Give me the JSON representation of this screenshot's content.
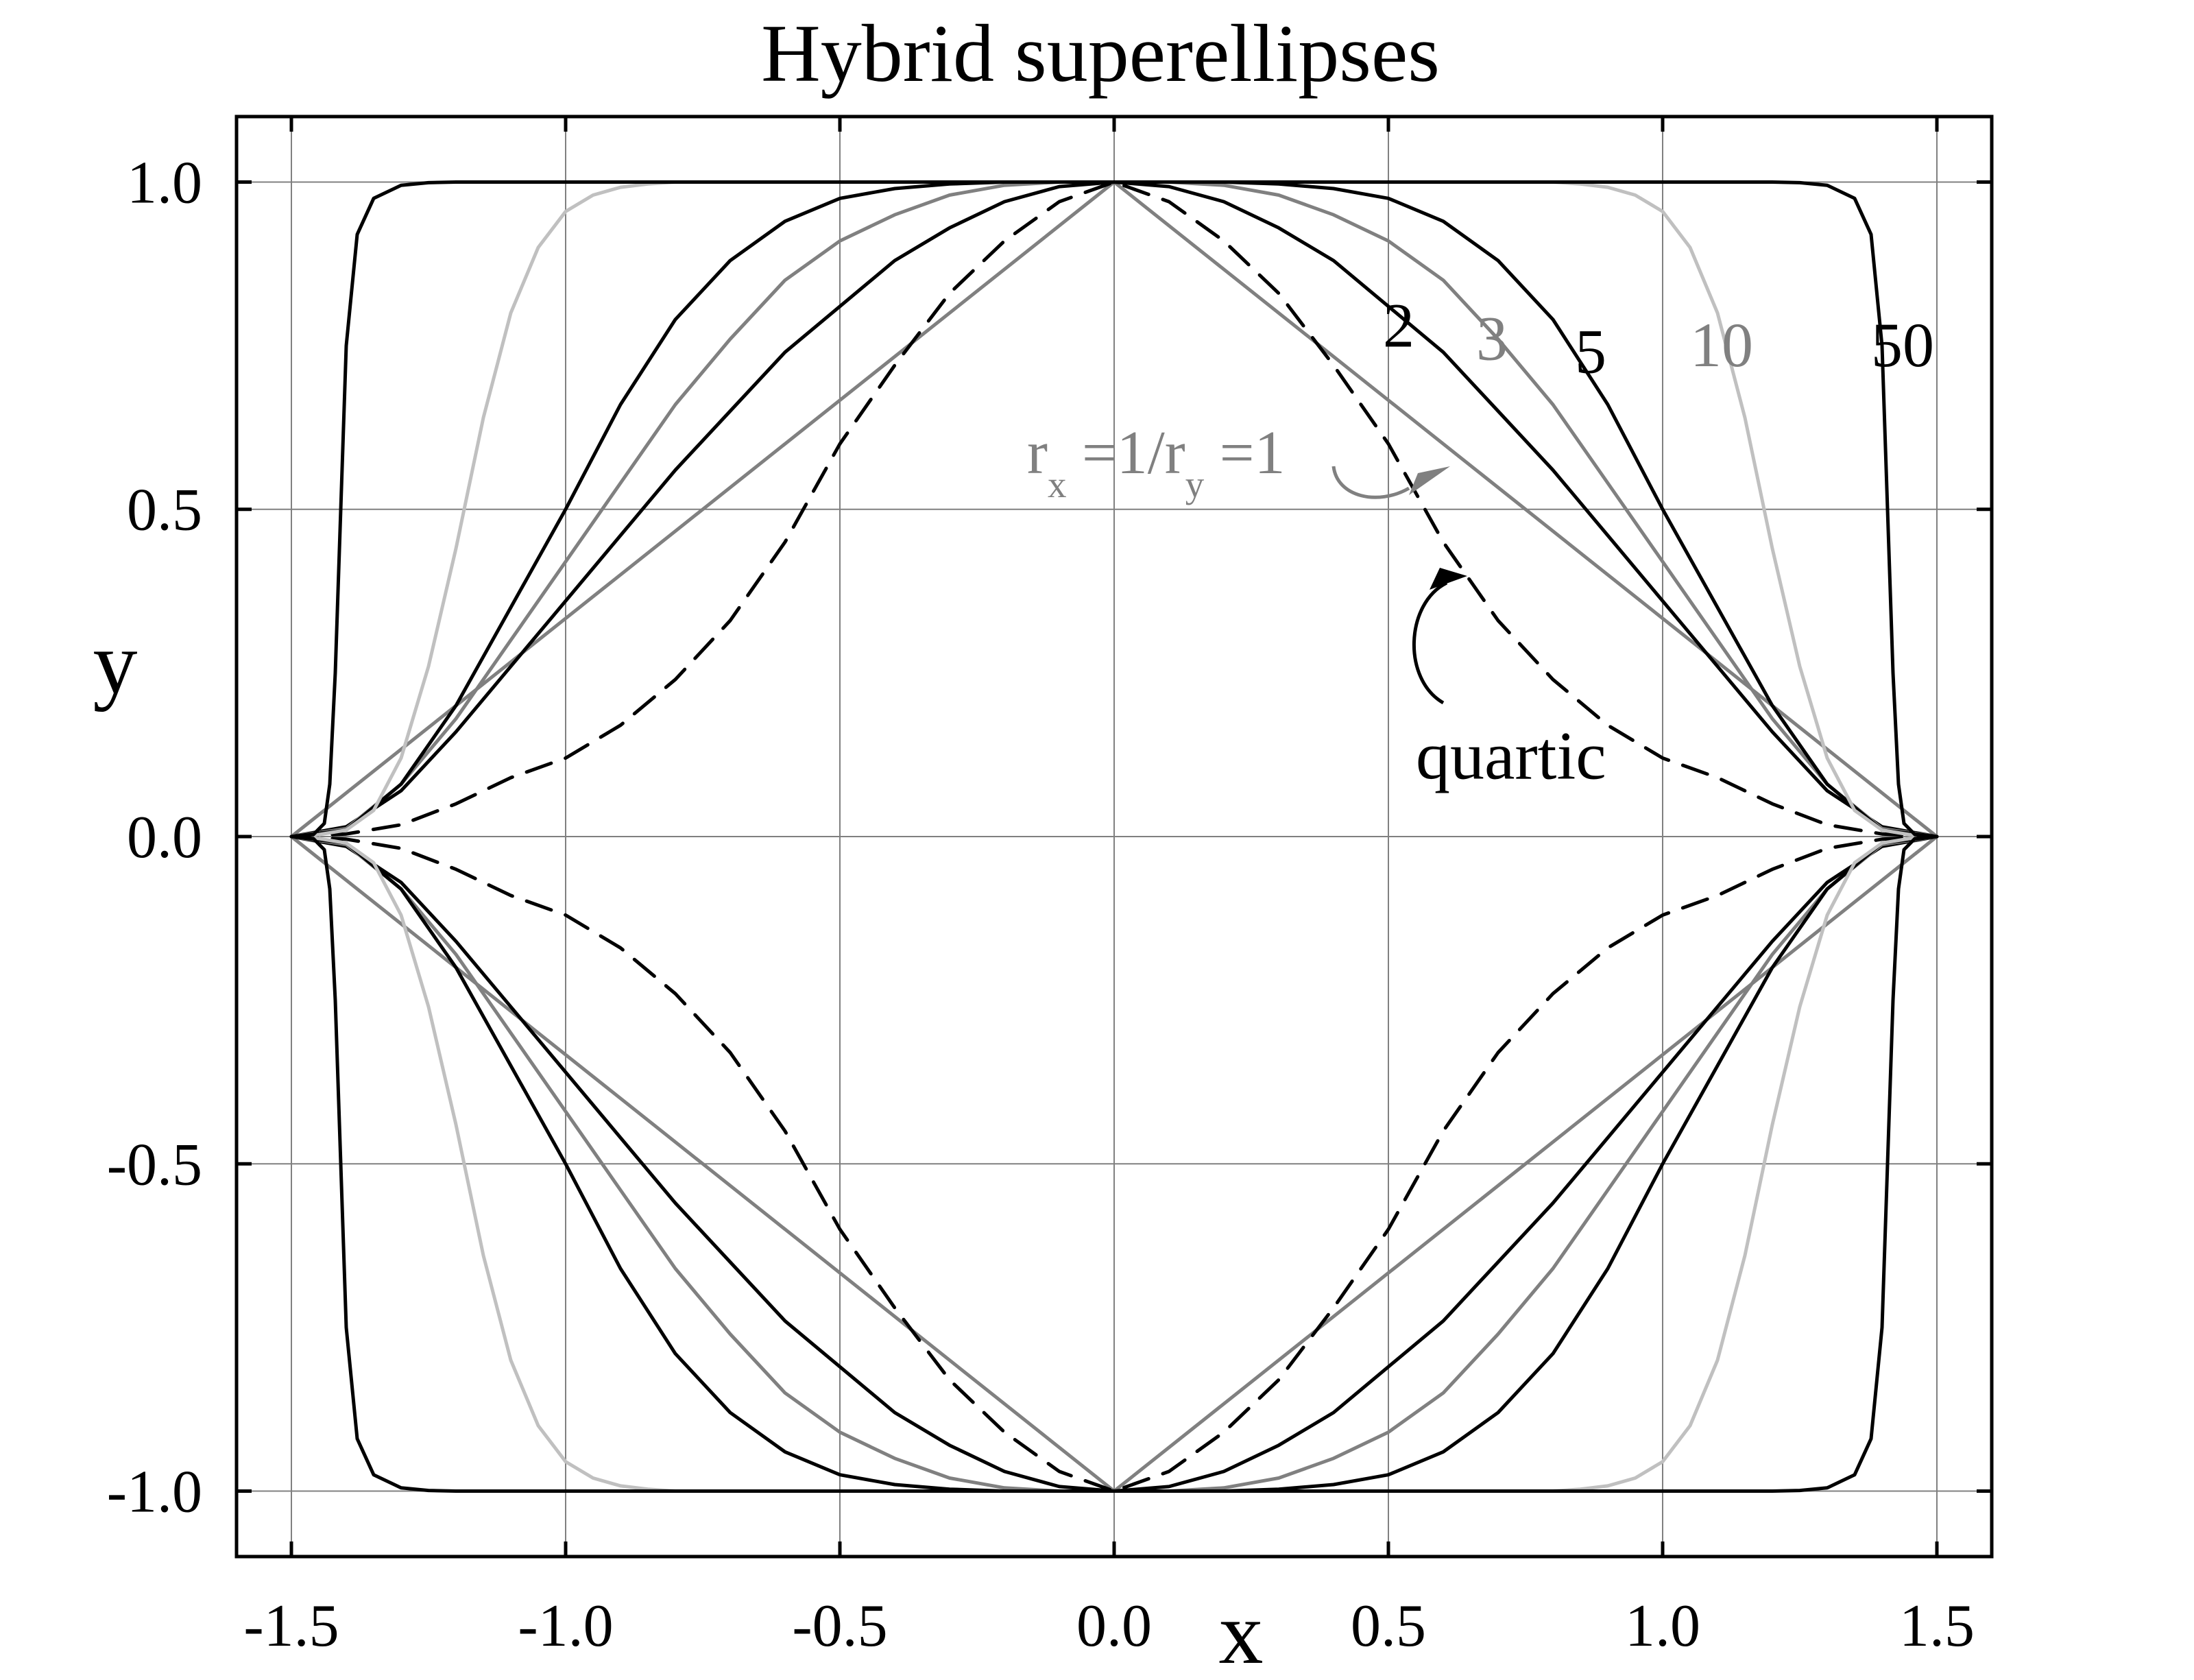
{
  "chart_data": {
    "type": "line",
    "title": "Hybrid superellipses",
    "xlabel": "x",
    "ylabel": "y",
    "xlim": [
      -1.6,
      1.6
    ],
    "ylim": [
      -1.1,
      1.1
    ],
    "grid": true,
    "x_ticks": [
      -1.5,
      -1.0,
      -0.5,
      0.0,
      0.5,
      1.0,
      1.5
    ],
    "x_tick_labels": [
      "-1.5",
      "-1.0",
      "-0.5",
      "0.0",
      "0.5",
      "1.0",
      "1.5"
    ],
    "y_ticks": [
      -1.0,
      -0.5,
      0.0,
      0.5,
      1.0
    ],
    "y_tick_labels": [
      "-1.0",
      "-0.5",
      "0.0",
      "0.5",
      "1.0"
    ],
    "series": [
      {
        "label": "r_x =1/r_y =1",
        "color": "#808080",
        "dash": "solid",
        "x": [
          -1.5,
          0.0,
          1.5
        ],
        "y": [
          0.0,
          1.0,
          0.0
        ]
      },
      {
        "label": "quartic",
        "color": "#000000",
        "dash": "dashed",
        "x": [
          -1.5,
          -1.4,
          -1.3,
          -1.2,
          -1.1,
          -1.0,
          -0.9,
          -0.8,
          -0.7,
          -0.6,
          -0.5,
          -0.4,
          -0.3,
          -0.2,
          -0.1,
          0.0,
          0.1,
          0.2,
          0.3,
          0.4,
          0.5,
          0.6,
          0.7,
          0.8,
          0.9,
          1.0,
          1.1,
          1.2,
          1.3,
          1.4,
          1.5
        ],
        "y": [
          0.0,
          0.004,
          0.018,
          0.05,
          0.09,
          0.12,
          0.17,
          0.24,
          0.33,
          0.45,
          0.6,
          0.72,
          0.83,
          0.91,
          0.97,
          1.0,
          0.97,
          0.91,
          0.83,
          0.72,
          0.6,
          0.45,
          0.33,
          0.24,
          0.17,
          0.12,
          0.09,
          0.05,
          0.018,
          0.004,
          0.0
        ]
      },
      {
        "label": "2",
        "color": "#000000",
        "dash": "solid",
        "x": [
          -1.5,
          -1.4,
          -1.3,
          -1.2,
          -1.1,
          -1.0,
          -0.9,
          -0.8,
          -0.7,
          -0.6,
          -0.5,
          -0.4,
          -0.3,
          -0.2,
          -0.1,
          0.0,
          0.1,
          0.2,
          0.3,
          0.4,
          0.5,
          0.6,
          0.7,
          0.8,
          0.9,
          1.0,
          1.1,
          1.2,
          1.3,
          1.4,
          1.5
        ],
        "y": [
          0.0,
          0.015,
          0.07,
          0.16,
          0.26,
          0.36,
          0.46,
          0.56,
          0.65,
          0.74,
          0.81,
          0.88,
          0.93,
          0.97,
          0.993,
          1.0,
          0.993,
          0.97,
          0.93,
          0.88,
          0.81,
          0.74,
          0.65,
          0.56,
          0.46,
          0.36,
          0.26,
          0.16,
          0.07,
          0.015,
          0.0
        ]
      },
      {
        "label": "3",
        "color": "#808080",
        "dash": "solid",
        "x": [
          -1.5,
          -1.4,
          -1.3,
          -1.2,
          -1.1,
          -1.0,
          -0.9,
          -0.8,
          -0.7,
          -0.6,
          -0.5,
          -0.4,
          -0.3,
          -0.2,
          -0.1,
          0.0,
          0.1,
          0.2,
          0.3,
          0.4,
          0.5,
          0.6,
          0.7,
          0.8,
          0.9,
          1.0,
          1.1,
          1.2,
          1.3,
          1.4,
          1.5
        ],
        "y": [
          0.0,
          0.012,
          0.08,
          0.18,
          0.3,
          0.42,
          0.54,
          0.66,
          0.76,
          0.85,
          0.91,
          0.95,
          0.98,
          0.995,
          1.0,
          1.0,
          1.0,
          0.995,
          0.98,
          0.95,
          0.91,
          0.85,
          0.76,
          0.66,
          0.54,
          0.42,
          0.3,
          0.18,
          0.08,
          0.012,
          0.0
        ]
      },
      {
        "label": "5",
        "color": "#000000",
        "dash": "solid",
        "x": [
          -1.5,
          -1.4,
          -1.3,
          -1.2,
          -1.1,
          -1.0,
          -0.9,
          -0.8,
          -0.7,
          -0.6,
          -0.5,
          -0.4,
          -0.3,
          -0.2,
          -0.1,
          0.0,
          0.1,
          0.2,
          0.3,
          0.4,
          0.5,
          0.6,
          0.7,
          0.8,
          0.9,
          1.0,
          1.1,
          1.2,
          1.3,
          1.4,
          1.5
        ],
        "y": [
          0.0,
          0.01,
          0.08,
          0.2,
          0.35,
          0.5,
          0.66,
          0.79,
          0.88,
          0.94,
          0.975,
          0.99,
          0.997,
          1.0,
          1.0,
          1.0,
          1.0,
          1.0,
          0.997,
          0.99,
          0.975,
          0.94,
          0.88,
          0.79,
          0.66,
          0.5,
          0.35,
          0.2,
          0.08,
          0.01,
          0.0
        ]
      },
      {
        "label": "10",
        "color": "#c0c0c0",
        "dash": "solid",
        "x": [
          -1.5,
          -1.45,
          -1.4,
          -1.35,
          -1.3,
          -1.25,
          -1.2,
          -1.15,
          -1.1,
          -1.05,
          -1.0,
          -0.95,
          -0.9,
          -0.85,
          -0.8,
          -0.75,
          0.0,
          0.75,
          0.8,
          0.85,
          0.9,
          0.95,
          1.0,
          1.05,
          1.1,
          1.15,
          1.2,
          1.25,
          1.3,
          1.35,
          1.4,
          1.45,
          1.5
        ],
        "y": [
          0.0,
          0.003,
          0.01,
          0.04,
          0.12,
          0.26,
          0.44,
          0.64,
          0.8,
          0.9,
          0.955,
          0.98,
          0.992,
          0.997,
          1.0,
          1.0,
          1.0,
          1.0,
          1.0,
          0.997,
          0.992,
          0.98,
          0.955,
          0.9,
          0.8,
          0.64,
          0.44,
          0.26,
          0.12,
          0.04,
          0.01,
          0.003,
          0.0
        ]
      },
      {
        "label": "50",
        "color": "#000000",
        "dash": "solid",
        "x": [
          -1.5,
          -1.46,
          -1.44,
          -1.43,
          -1.42,
          -1.41,
          -1.4,
          -1.38,
          -1.35,
          -1.3,
          -1.25,
          -1.2,
          0.0,
          1.2,
          1.25,
          1.3,
          1.35,
          1.38,
          1.4,
          1.41,
          1.42,
          1.43,
          1.44,
          1.46,
          1.5
        ],
        "y": [
          0.0,
          0.003,
          0.02,
          0.08,
          0.25,
          0.5,
          0.75,
          0.92,
          0.975,
          0.995,
          0.999,
          1.0,
          1.0,
          1.0,
          0.999,
          0.995,
          0.975,
          0.92,
          0.75,
          0.5,
          0.25,
          0.08,
          0.02,
          0.003,
          0.0
        ]
      }
    ],
    "annotations": [
      {
        "text": "2",
        "x": 0.49,
        "y": 0.78,
        "color": "#000000"
      },
      {
        "text": "3",
        "x": 0.66,
        "y": 0.76,
        "color": "#808080"
      },
      {
        "text": "5",
        "x": 0.84,
        "y": 0.74,
        "color": "#000000"
      },
      {
        "text": "10",
        "x": 1.05,
        "y": 0.75,
        "color": "#808080"
      },
      {
        "text": "50",
        "x": 1.38,
        "y": 0.75,
        "color": "#000000"
      },
      {
        "text": "quartic",
        "x": 0.55,
        "y": 0.12,
        "color": "#000000"
      }
    ],
    "label_rx_ry": {
      "r1": "r",
      "sub_x": "x",
      "mid": " =1/r",
      "sub_y": "y",
      "end": " =1",
      "color": "#808080"
    }
  }
}
